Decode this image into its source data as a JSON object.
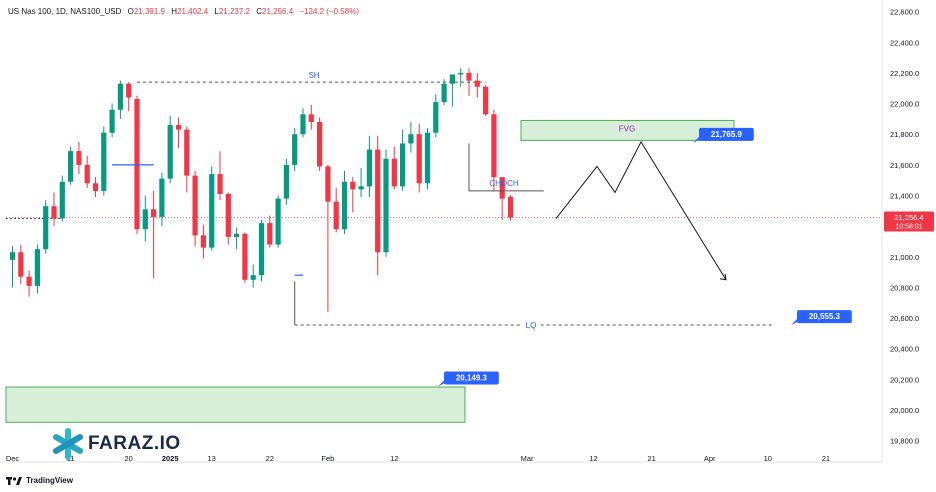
{
  "header": {
    "symbol": "US Nas 100, 1D, NAS100_USD",
    "open_label": "O",
    "open": "21,391.9",
    "high_label": "H",
    "high": "21,402.4",
    "low_label": "L",
    "low": "21,237.2",
    "close_label": "C",
    "close": "21,256.4",
    "change": "−124.2 (−0.58%)"
  },
  "branding": {
    "logo": "FARAZ.IO",
    "footer": "TradingView"
  },
  "colors": {
    "up": "#089981",
    "down": "#f23645",
    "accent": "#2962ff",
    "zone_fill": "#d7efd8",
    "zone_border": "#4caf50"
  },
  "chart_data": {
    "type": "candlestick",
    "y_axis": {
      "min": 19700,
      "max": 22650,
      "position": "right",
      "ticks": [
        "22,600.0",
        "22,400.0",
        "22,200.0",
        "22,000.0",
        "21,800.0",
        "21,600.0",
        "21,400.0",
        "21,200.0",
        "21,000.0",
        "20,800.0",
        "20,600.0",
        "20,400.0",
        "20,200.0",
        "20,000.0",
        "19,800.0"
      ]
    },
    "x_axis": {
      "ticks": [
        {
          "label": "Dec",
          "i": 0
        },
        {
          "label": "11",
          "i": 7
        },
        {
          "label": "20",
          "i": 14
        },
        {
          "label": "2025",
          "i": 19
        },
        {
          "label": "13",
          "i": 24
        },
        {
          "label": "22",
          "i": 31
        },
        {
          "label": "Feb",
          "i": 38
        },
        {
          "label": "12",
          "i": 46
        },
        {
          "label": "Mar",
          "i": 62
        },
        {
          "label": "12",
          "i": 70
        },
        {
          "label": "21",
          "i": 77
        },
        {
          "label": "Apr",
          "i": 84
        },
        {
          "label": "10",
          "i": 91
        },
        {
          "label": "21",
          "i": 98
        }
      ]
    },
    "candles": [
      [
        20980,
        21070,
        20800,
        21030
      ],
      [
        21030,
        21080,
        20820,
        20870
      ],
      [
        20870,
        20910,
        20740,
        20810
      ],
      [
        20810,
        21080,
        20760,
        21050
      ],
      [
        21050,
        21370,
        21020,
        21330
      ],
      [
        21330,
        21420,
        21200,
        21250
      ],
      [
        21250,
        21530,
        21230,
        21490
      ],
      [
        21490,
        21720,
        21470,
        21690
      ],
      [
        21690,
        21750,
        21540,
        21600
      ],
      [
        21600,
        21660,
        21450,
        21480
      ],
      [
        21480,
        21520,
        21390,
        21430
      ],
      [
        21430,
        21850,
        21400,
        21810
      ],
      [
        21810,
        22000,
        21780,
        21960
      ],
      [
        21960,
        22150,
        21900,
        22130
      ],
      [
        22130,
        22140,
        21950,
        22040
      ],
      [
        22030,
        22050,
        21150,
        21180
      ],
      [
        21180,
        21400,
        21100,
        21310
      ],
      [
        21310,
        21430,
        20860,
        21260
      ],
      [
        21260,
        21550,
        21200,
        21510
      ],
      [
        21510,
        21920,
        21480,
        21860
      ],
      [
        21860,
        21910,
        21710,
        21830
      ],
      [
        21830,
        21850,
        21420,
        21530
      ],
      [
        21530,
        21560,
        21070,
        21140
      ],
      [
        21140,
        21210,
        20990,
        21060
      ],
      [
        21060,
        21590,
        21040,
        21540
      ],
      [
        21540,
        21690,
        21370,
        21410
      ],
      [
        21410,
        21420,
        21080,
        21130
      ],
      [
        21130,
        21190,
        21050,
        21150
      ],
      [
        21150,
        21160,
        20830,
        20850
      ],
      [
        20850,
        20950,
        20800,
        20880
      ],
      [
        20880,
        21240,
        20840,
        21220
      ],
      [
        21220,
        21270,
        21060,
        21080
      ],
      [
        21080,
        21400,
        21060,
        21380
      ],
      [
        21380,
        21640,
        21340,
        21600
      ],
      [
        21600,
        21840,
        21560,
        21800
      ],
      [
        21800,
        21970,
        21780,
        21930
      ],
      [
        21930,
        21990,
        21830,
        21880
      ],
      [
        21880,
        21910,
        21560,
        21590
      ],
      [
        21590,
        21600,
        20640,
        21360
      ],
      [
        21360,
        21450,
        21160,
        21180
      ],
      [
        21180,
        21560,
        21150,
        21490
      ],
      [
        21490,
        21520,
        21290,
        21440
      ],
      [
        21440,
        21580,
        21390,
        21460
      ],
      [
        21460,
        21790,
        21390,
        21700
      ],
      [
        21700,
        21790,
        20880,
        21030
      ],
      [
        21030,
        21700,
        21000,
        21640
      ],
      [
        21640,
        21720,
        21440,
        21460
      ],
      [
        21460,
        21830,
        21430,
        21740
      ],
      [
        21740,
        21880,
        21680,
        21800
      ],
      [
        21800,
        21870,
        21420,
        21480
      ],
      [
        21480,
        21840,
        21440,
        21810
      ],
      [
        21810,
        22060,
        21780,
        22010
      ],
      [
        22010,
        22160,
        21990,
        22130
      ],
      [
        22130,
        22180,
        21980,
        22190
      ],
      [
        22190,
        22230,
        22110,
        22200
      ],
      [
        22200,
        22230,
        22050,
        22150
      ],
      [
        22150,
        22200,
        22040,
        22110
      ],
      [
        22110,
        22120,
        21920,
        21930
      ],
      [
        21930,
        21960,
        21430,
        21520
      ],
      [
        21520,
        21510,
        21240,
        21380
      ],
      [
        21391.9,
        21402.4,
        21237.2,
        21256.4
      ]
    ],
    "annotations": {
      "swing_high": {
        "text": "SH",
        "price": 22140
      },
      "fvg": {
        "text": "FVG",
        "top": 21890,
        "bottom": 21760,
        "price_label": "21,765.9"
      },
      "choch": {
        "text": "CHOCH",
        "price": 21430
      },
      "liquidity": {
        "text": "LQ",
        "price": 20555,
        "price_label": "20,555.3"
      },
      "demand_zone": {
        "top": 20150,
        "bottom": 19920,
        "price_label": "20,149.3"
      },
      "current_price": {
        "price": 21256.4,
        "label": "21,256.4",
        "countdown": "10:58:01"
      },
      "projection": [
        21250,
        21590,
        21420,
        21750,
        20850
      ]
    }
  }
}
